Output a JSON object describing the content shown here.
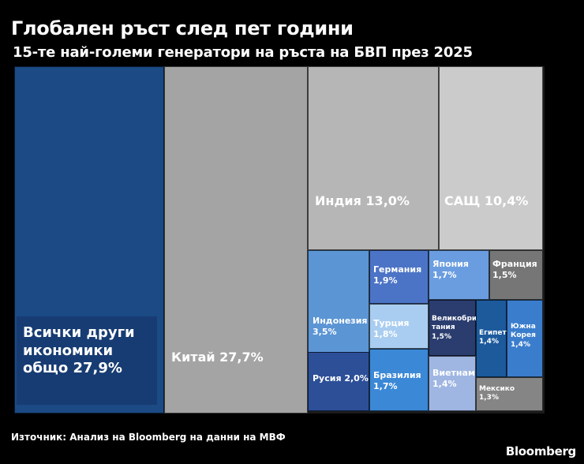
{
  "header": {
    "title": "Глобален ръст след пет години",
    "subtitle": "15-те най-големи генератори на ръста на БВП през 2025"
  },
  "footer": {
    "source_prefix": "Източник: Анализ на ",
    "source_brand": "Bloomberg",
    "source_suffix": " на данни на МВФ",
    "logo": "Bloomberg"
  },
  "chart_data": {
    "type": "treemap",
    "title": "Глобален ръст след пет години",
    "subtitle": "15-те най-големи генератори на ръста на БВП през 2025",
    "unit": "%",
    "items": [
      {
        "name": "Всички други икономики общо",
        "value": 27.9,
        "label": "Всички други\nикономики\nобщо 27,9%",
        "color": "#1b4a85"
      },
      {
        "name": "Китай",
        "value": 27.7,
        "label": "Китай 27,7%",
        "color": "#a4a4a4"
      },
      {
        "name": "Индия",
        "value": 13.0,
        "label": "Индия 13,0%",
        "color": "#b6b6b6"
      },
      {
        "name": "САЩ",
        "value": 10.4,
        "label": "САЩ 10,4%",
        "color": "#cbcbcb"
      },
      {
        "name": "Индонезия",
        "value": 3.5,
        "label": "Индонезия\n3,5%",
        "color": "#5b95d4"
      },
      {
        "name": "Германия",
        "value": 1.9,
        "label": "Германия\n1,9%",
        "color": "#4c74c6"
      },
      {
        "name": "Япония",
        "value": 1.7,
        "label": "Япония\n1,7%",
        "color": "#6a9de0"
      },
      {
        "name": "Франция",
        "value": 1.5,
        "label": "Франция\n1,5%",
        "color": "#767676"
      },
      {
        "name": "Турция",
        "value": 1.8,
        "label": "Турция\n1,8%",
        "color": "#a9cdf0"
      },
      {
        "name": "Великобритания",
        "value": 1.5,
        "label": "Великобри\nтания 1,5%",
        "color": "#2b3d6e"
      },
      {
        "name": "Египет",
        "value": 1.4,
        "label": "Египет\n1,4%",
        "color": "#1c5a9c"
      },
      {
        "name": "Южна Корея",
        "value": 1.4,
        "label": "Южна\nКорея\n1,4%",
        "color": "#3b7dcd"
      },
      {
        "name": "Русия",
        "value": 2.0,
        "label": "Русия 2,0%",
        "color": "#2c4f98"
      },
      {
        "name": "Бразилия",
        "value": 1.7,
        "label": "Бразилия\n1,7%",
        "color": "#3b88d6"
      },
      {
        "name": "Виетнам",
        "value": 1.4,
        "label": "Виетнам\n1,4%",
        "color": "#9fb6e2"
      },
      {
        "name": "Мексико",
        "value": 1.3,
        "label": "Мексико\n1,3%",
        "color": "#858585"
      }
    ]
  }
}
